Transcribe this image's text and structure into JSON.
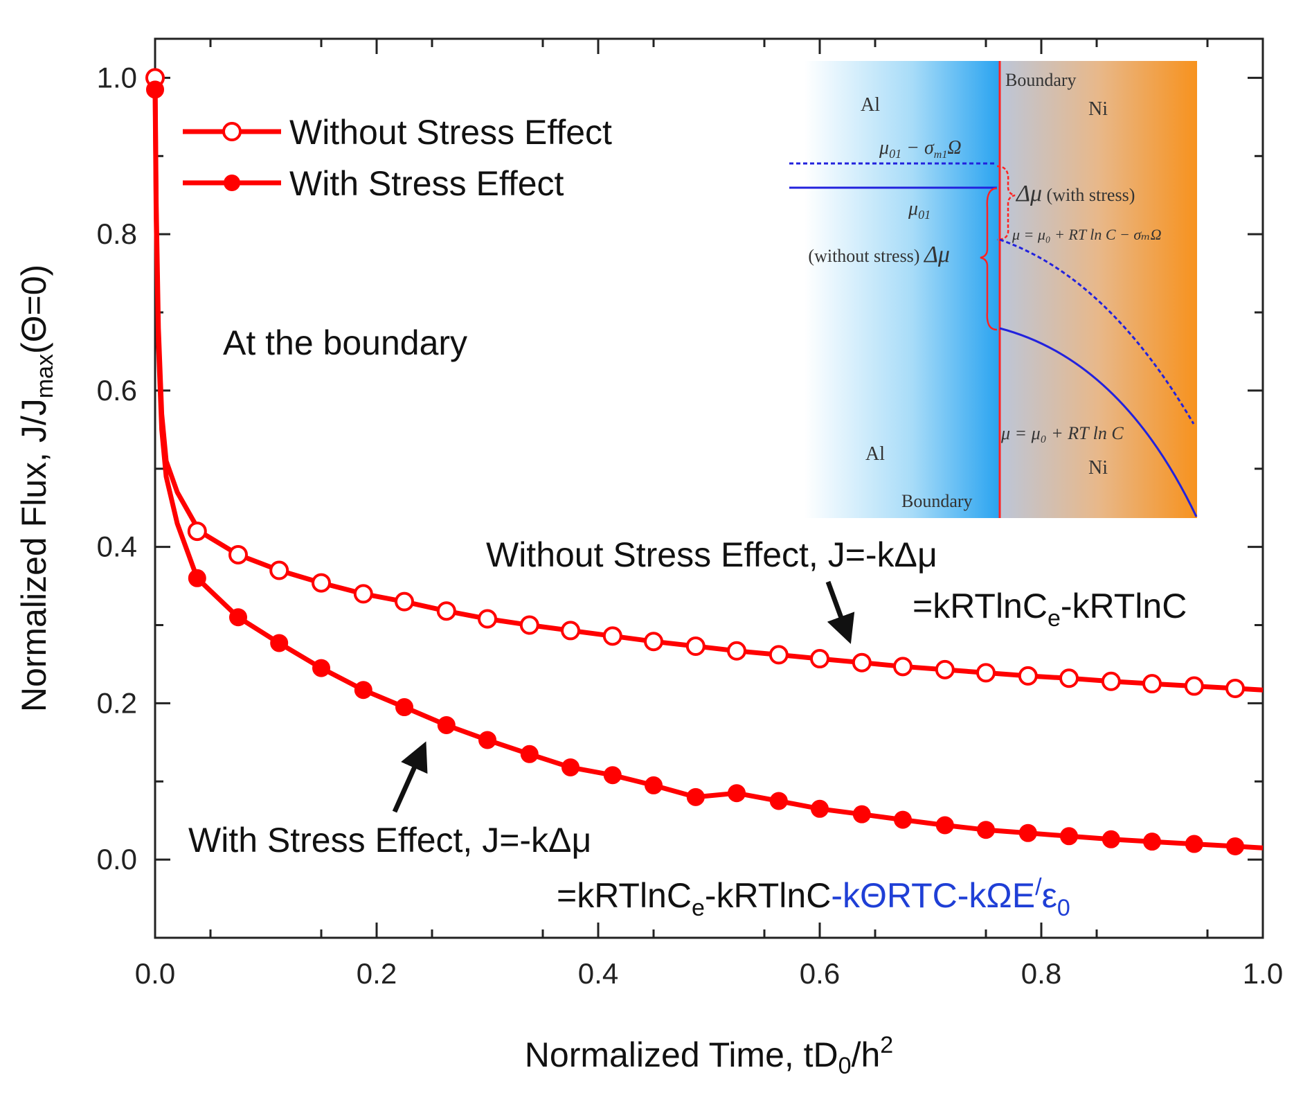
{
  "chart_data": {
    "type": "line",
    "xlabel": "Normalized Time, tD",
    "xlabel_sub": "0",
    "xlabel_tail": "/h",
    "xlabel_sup": "2",
    "ylabel": "Normalized Flux, J/J",
    "ylabel_sub": "max",
    "ylabel_tail": "(Θ=0)",
    "xlim": [
      0.0,
      1.0
    ],
    "ylim": [
      -0.1,
      1.05
    ],
    "x_ticks": [
      "0.0",
      "0.2",
      "0.4",
      "0.6",
      "0.8",
      "1.0"
    ],
    "y_ticks": [
      "0.0",
      "0.2",
      "0.4",
      "0.6",
      "0.8",
      "1.0"
    ],
    "x_tick_values": [
      0.0,
      0.2,
      0.4,
      0.6,
      0.8,
      1.0
    ],
    "y_tick_values": [
      0.0,
      0.2,
      0.4,
      0.6,
      0.8,
      1.0
    ],
    "line_color": "#ff0000",
    "legend": [
      {
        "label": "Without Stress Effect",
        "marker": "open-circle"
      },
      {
        "label": "With Stress Effect",
        "marker": "filled-circle"
      }
    ],
    "series": [
      {
        "name": "Without Stress Effect",
        "marker": "open-circle",
        "curve_x": [
          0.0,
          0.001,
          0.003,
          0.006,
          0.01,
          0.02,
          0.04,
          0.075,
          0.112,
          0.15,
          0.188,
          0.225,
          0.263,
          0.3,
          0.338,
          0.375,
          0.413,
          0.45,
          0.488,
          0.525,
          0.563,
          0.6,
          0.638,
          0.675,
          0.713,
          0.75,
          0.788,
          0.825,
          0.863,
          0.9,
          0.938,
          0.975,
          1.0
        ],
        "curve_y": [
          1.0,
          0.84,
          0.68,
          0.57,
          0.51,
          0.47,
          0.42,
          0.39,
          0.37,
          0.354,
          0.34,
          0.33,
          0.318,
          0.308,
          0.3,
          0.293,
          0.286,
          0.279,
          0.273,
          0.267,
          0.262,
          0.257,
          0.252,
          0.247,
          0.243,
          0.239,
          0.235,
          0.232,
          0.228,
          0.225,
          0.222,
          0.219,
          0.217
        ],
        "marker_x": [
          0.0,
          0.038,
          0.075,
          0.112,
          0.15,
          0.188,
          0.225,
          0.263,
          0.3,
          0.338,
          0.375,
          0.413,
          0.45,
          0.488,
          0.525,
          0.563,
          0.6,
          0.638,
          0.675,
          0.713,
          0.75,
          0.788,
          0.825,
          0.863,
          0.9,
          0.938,
          0.975
        ],
        "marker_y": [
          1.0,
          0.42,
          0.39,
          0.37,
          0.354,
          0.34,
          0.33,
          0.318,
          0.308,
          0.3,
          0.293,
          0.286,
          0.279,
          0.273,
          0.267,
          0.262,
          0.257,
          0.252,
          0.247,
          0.243,
          0.239,
          0.235,
          0.232,
          0.228,
          0.225,
          0.222,
          0.219
        ]
      },
      {
        "name": "With Stress Effect",
        "marker": "filled-circle",
        "curve_x": [
          0.0,
          0.001,
          0.003,
          0.006,
          0.01,
          0.02,
          0.038,
          0.075,
          0.112,
          0.15,
          0.188,
          0.225,
          0.263,
          0.3,
          0.338,
          0.375,
          0.413,
          0.45,
          0.488,
          0.525,
          0.563,
          0.6,
          0.638,
          0.675,
          0.713,
          0.75,
          0.788,
          0.825,
          0.863,
          0.9,
          0.938,
          0.975,
          1.0
        ],
        "curve_y": [
          0.985,
          0.82,
          0.66,
          0.55,
          0.49,
          0.43,
          0.36,
          0.31,
          0.277,
          0.245,
          0.217,
          0.195,
          0.172,
          0.153,
          0.135,
          0.118,
          0.108,
          0.095,
          0.08,
          0.085,
          0.075,
          0.065,
          0.058,
          0.051,
          0.044,
          0.038,
          0.034,
          0.03,
          0.026,
          0.023,
          0.02,
          0.017,
          0.015
        ],
        "marker_x": [
          0.0,
          0.038,
          0.075,
          0.112,
          0.15,
          0.188,
          0.225,
          0.263,
          0.3,
          0.338,
          0.375,
          0.413,
          0.45,
          0.488,
          0.525,
          0.563,
          0.6,
          0.638,
          0.675,
          0.713,
          0.75,
          0.788,
          0.825,
          0.863,
          0.9,
          0.938,
          0.975
        ],
        "marker_y": [
          0.985,
          0.36,
          0.31,
          0.277,
          0.245,
          0.217,
          0.195,
          0.172,
          0.153,
          0.135,
          0.118,
          0.108,
          0.095,
          0.08,
          0.085,
          0.075,
          0.065,
          0.058,
          0.051,
          0.044,
          0.038,
          0.034,
          0.03,
          0.026,
          0.023,
          0.02,
          0.017
        ]
      }
    ],
    "annotations": {
      "at_boundary": "At the boundary",
      "without_line1": "Without Stress Effect, J=-kΔμ",
      "without_line2_a": "=kRTlnC",
      "without_line2_sub": "e",
      "without_line2_b": "-kRTlnC",
      "with_line1": "With Stress Effect, J=-kΔμ",
      "with_line2_a": "=kRTlnC",
      "with_line2_sub": "e",
      "with_line2_b": "-kRTlnC",
      "with_line2_blue_a": "-kΘRTC-kΩE",
      "with_line2_blue_sup": "/",
      "with_line2_blue_b": "ε",
      "with_line2_blue_sub": "0",
      "blue_color": "#1f3fd6"
    },
    "inset": {
      "boundary_top": "Boundary",
      "boundary_bottom": "Boundary",
      "al_top": "Al",
      "ni_top": "Ni",
      "al_bottom": "Al",
      "ni_bottom": "Ni",
      "mu01_minus": "μ",
      "mu01_minus_sub": "01",
      "mu01_minus_tail": " − σ",
      "mu01_minus_sub2": "m1",
      "mu01_minus_end": "Ω",
      "mu01": "μ",
      "mu01_sub": "01",
      "delta_with": "Δμ",
      "with_stress": " (with stress)",
      "without_stress": "(without stress) ",
      "delta_without": "Δμ",
      "eq_stress": "μ = μ₀ + RT ln C − σₘΩ",
      "eq_plain": "μ = μ₀ + RT ln C",
      "al_color": "#29a3f0",
      "ni_color": "#f7921e",
      "curve_color": "#2222dd",
      "boundary_color": "#ff2222"
    }
  }
}
